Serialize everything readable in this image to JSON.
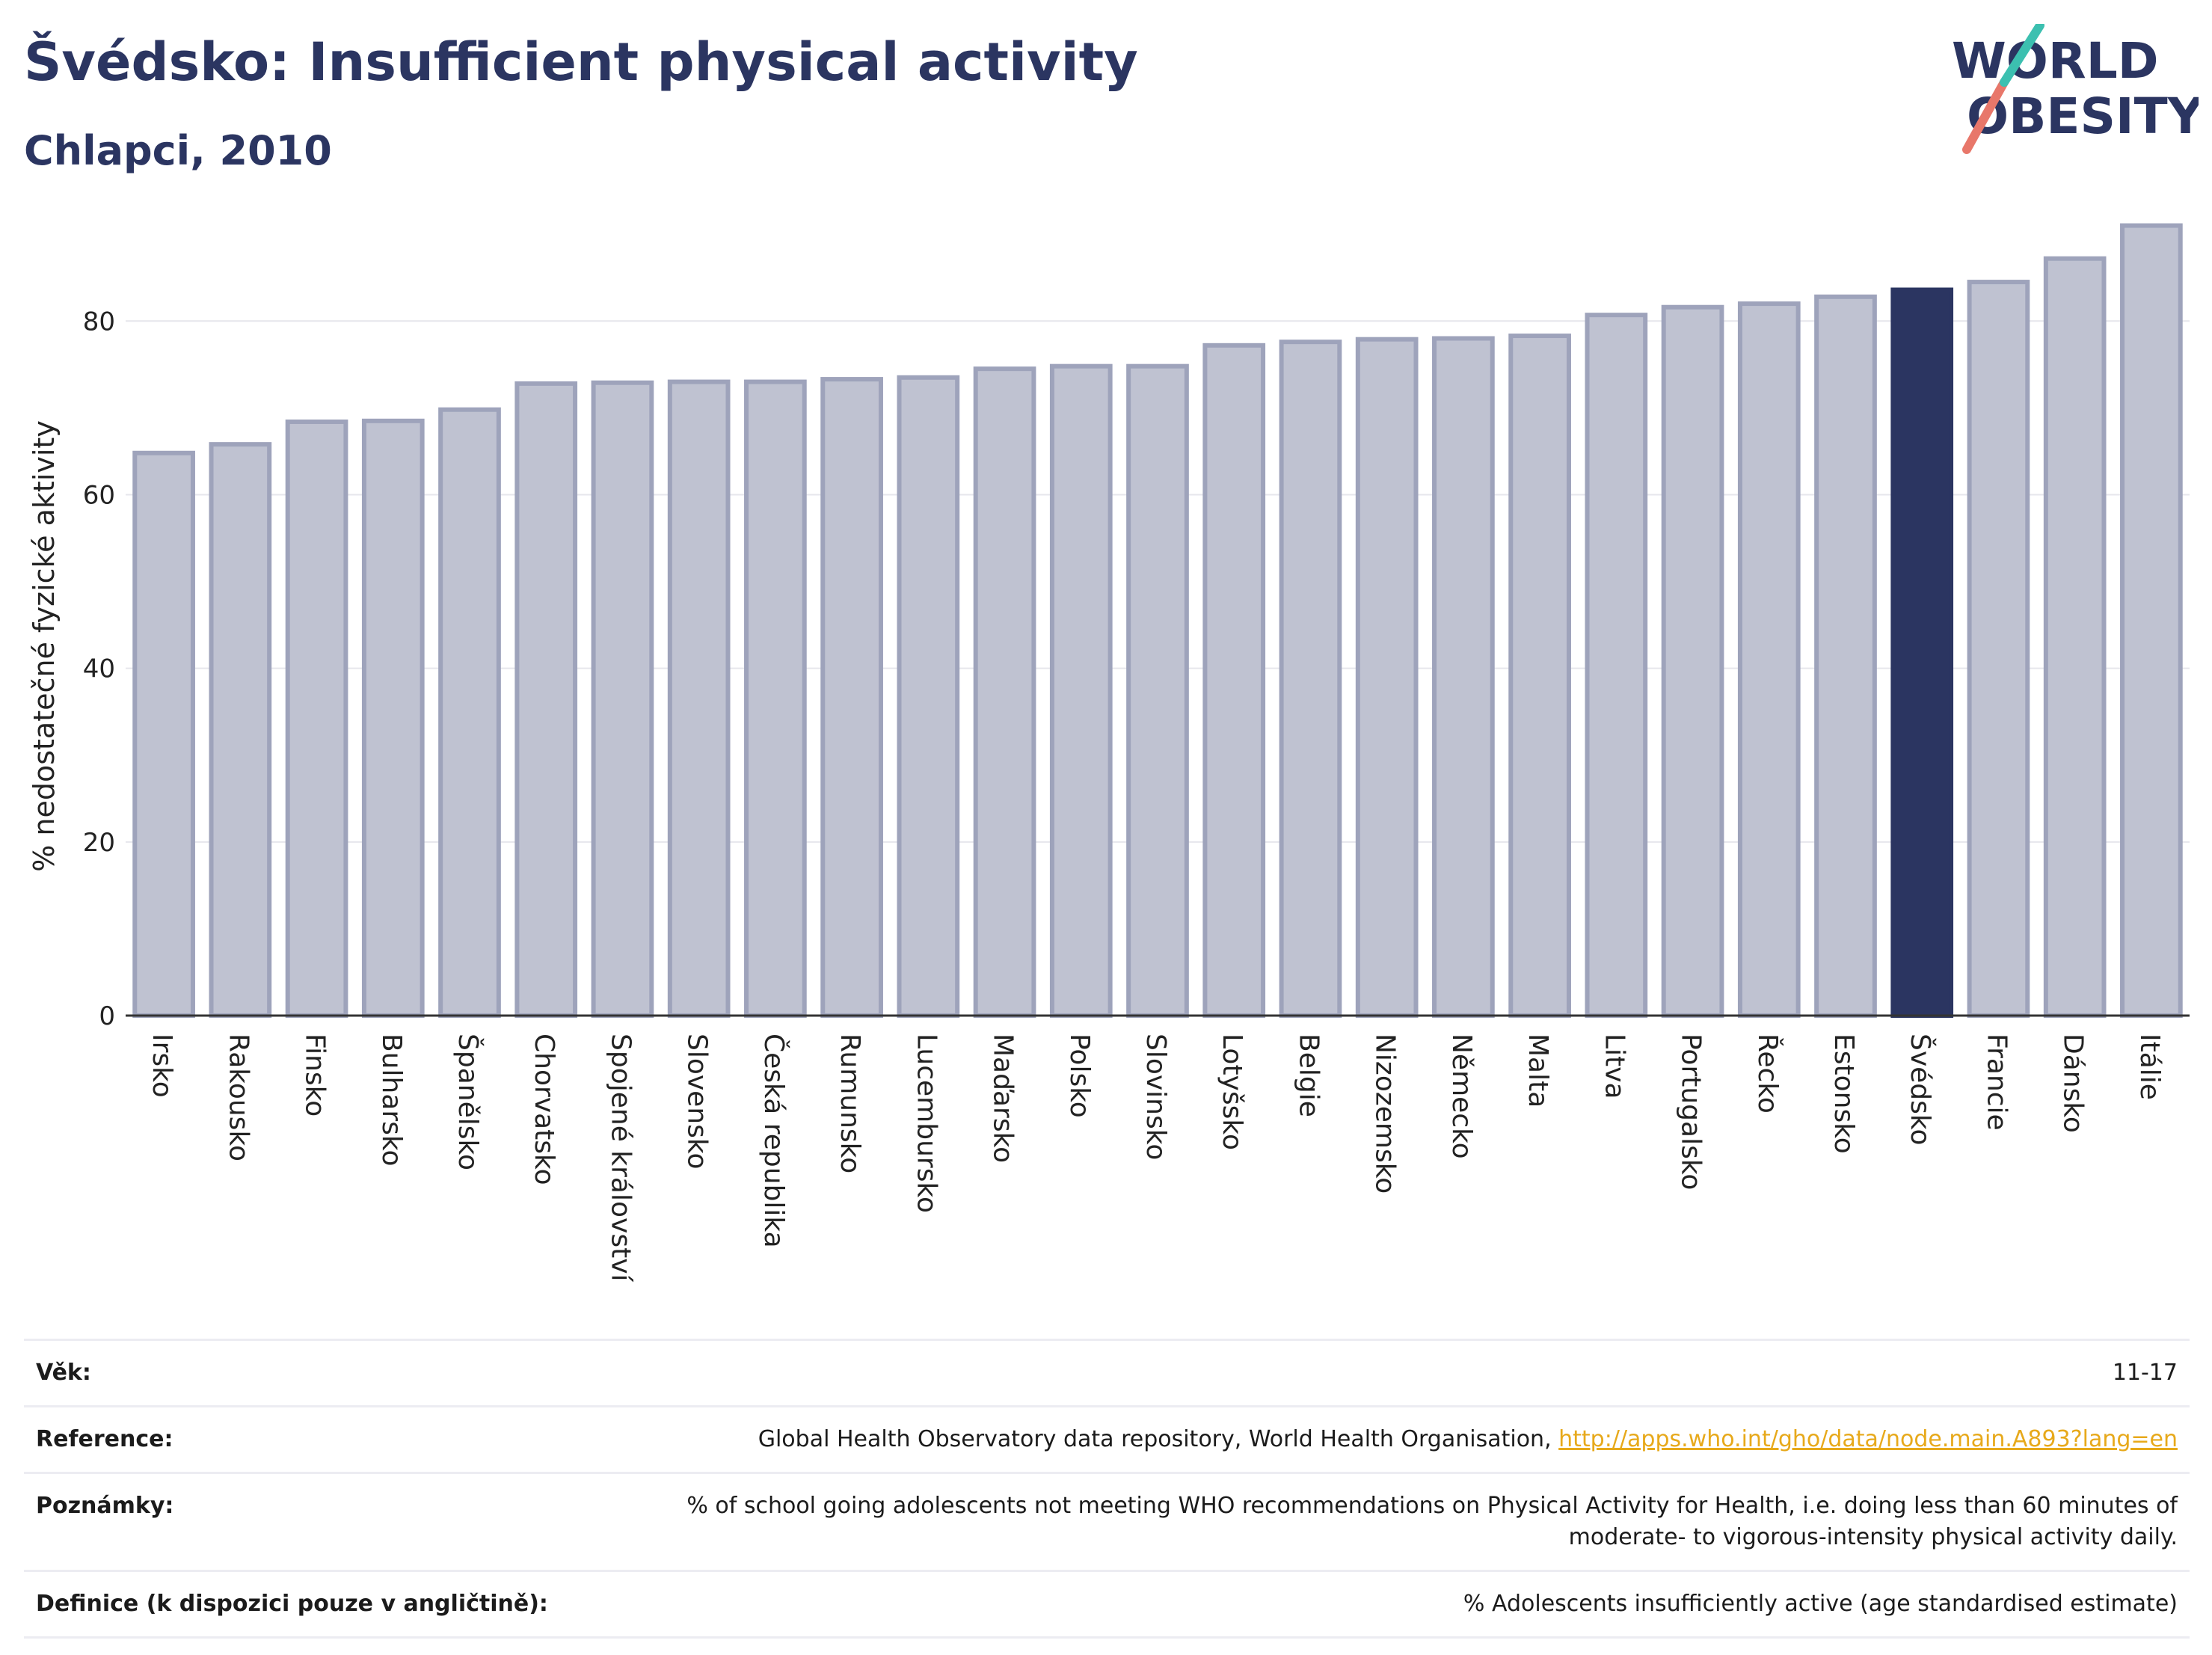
{
  "header": {
    "title": "Švédsko: Insufficient physical activity",
    "subtitle": "Chlapci, 2010"
  },
  "logo": {
    "line1": "WORLD",
    "line2": "OBESITY"
  },
  "chart_data": {
    "type": "bar",
    "ylabel": "% nedostatečné fyzické aktivity",
    "ylim": [
      0,
      92
    ],
    "yticks": [
      0,
      20,
      40,
      60,
      80
    ],
    "grid": true,
    "highlight": "Švédsko",
    "colors": {
      "bar": "#bfc2d1",
      "bar_edge": "#9ea3bb",
      "highlight": "#2b3561"
    },
    "categories": [
      "Irsko",
      "Rakousko",
      "Finsko",
      "Bulharsko",
      "Španělsko",
      "Chorvatsko",
      "Spojené království",
      "Slovensko",
      "Česká republika",
      "Rumunsko",
      "Lucembursko",
      "Maďarsko",
      "Polsko",
      "Slovinsko",
      "Lotyšsko",
      "Belgie",
      "Nizozemsko",
      "Německo",
      "Malta",
      "Litva",
      "Portugalsko",
      "Řecko",
      "Estonsko",
      "Švédsko",
      "Francie",
      "Dánsko",
      "Itálie"
    ],
    "values": [
      64.8,
      65.8,
      68.4,
      68.5,
      69.8,
      72.8,
      72.9,
      73.0,
      73.0,
      73.3,
      73.5,
      74.5,
      74.8,
      74.8,
      77.2,
      77.6,
      77.9,
      78.0,
      78.3,
      80.7,
      81.6,
      82.0,
      82.8,
      83.6,
      84.5,
      87.2,
      91.0
    ]
  },
  "meta": [
    {
      "key": "Věk:",
      "value": "11-17"
    },
    {
      "key": "Reference:",
      "value": "Global Health Observatory data repository, World Health Organisation, ",
      "link": "http://apps.who.int/gho/data/node.main.A893?lang=en"
    },
    {
      "key": "Poznámky:",
      "value": "% of school going adolescents not meeting WHO recommendations on Physical Activity for Health, i.e. doing less than 60 minutes of moderate- to vigorous-intensity physical activity daily."
    },
    {
      "key": "Definice (k dispozici pouze v angličtině):",
      "value": "% Adolescents insufficiently active (age standardised estimate)"
    }
  ]
}
